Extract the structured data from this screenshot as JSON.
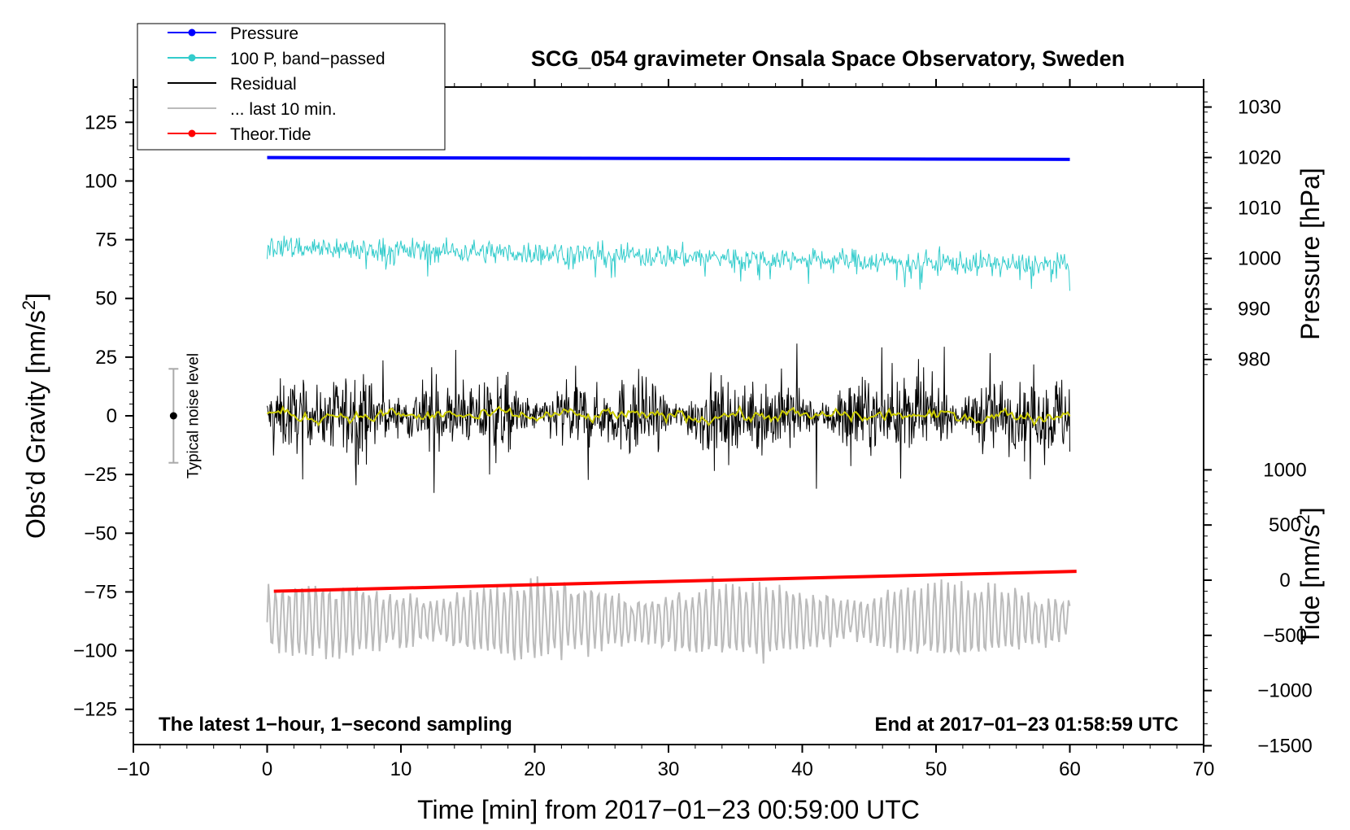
{
  "chart_data": {
    "type": "line",
    "title": "SCG_054 gravimeter Onsala Space Observatory, Sweden",
    "xlabel": "Time [min] from 2017−01−23 00:59:00 UTC",
    "ylabel_left": "Obs’d Gravity [nm/s",
    "ylabel_left_sup": "2",
    "ylabel_left_close": "]",
    "ylabel_right_pressure": "Pressure [hPa]",
    "ylabel_right_tide": "Tide [nm/s",
    "ylabel_right_tide_sup": "2",
    "ylabel_right_tide_close": "]",
    "xlim": [
      -10,
      70
    ],
    "ylim_left": [
      -140,
      140
    ],
    "pressure_axis": {
      "ticks": [
        980,
        990,
        1000,
        1010,
        1020,
        1030
      ],
      "labels": [
        "980",
        "990",
        "1000",
        "1010",
        "1020",
        "1030"
      ]
    },
    "tide_axis": {
      "ticks": [
        -1500,
        -1000,
        -500,
        0,
        500,
        1000
      ],
      "labels": [
        "−1500",
        "−1000",
        "−500",
        "0",
        "500",
        "1000"
      ]
    },
    "x_ticks": [
      -10,
      0,
      10,
      20,
      30,
      40,
      50,
      60,
      70
    ],
    "x_tick_labels": [
      "−10",
      "0",
      "10",
      "20",
      "30",
      "40",
      "50",
      "60",
      "70"
    ],
    "y_ticks": [
      -125,
      -100,
      -75,
      -50,
      -25,
      0,
      25,
      50,
      75,
      100,
      125
    ],
    "y_tick_labels": [
      "−125",
      "−100",
      "−75",
      "−50",
      "−25",
      "0",
      "25",
      "50",
      "75",
      "100",
      "125"
    ],
    "legend": [
      {
        "label": "Pressure",
        "color": "#0000ff",
        "marker": true
      },
      {
        "label": "100 P, band−passed",
        "color": "#33cccc",
        "marker": true
      },
      {
        "label": "Residual",
        "color": "#000000",
        "marker": false
      },
      {
        "label": "... last 10 min.",
        "color": "#bbbbbb",
        "marker": false
      },
      {
        "label": "Theor.Tide",
        "color": "#ff0000",
        "marker": true
      }
    ],
    "series": [
      {
        "name": "Pressure",
        "color": "#0000ff",
        "axis": "left",
        "level_start": 110,
        "level_end": 109.2,
        "x_range": [
          0,
          60
        ]
      },
      {
        "name": "100 P, band−passed",
        "color": "#33cccc",
        "axis": "left",
        "level_start": 72,
        "level_end": 64,
        "noise_amplitude": 8,
        "x_range": [
          0,
          60
        ]
      },
      {
        "name": "Residual",
        "color": "#000000",
        "axis": "left",
        "level": 0,
        "noise_amplitude": 20,
        "x_range": [
          0,
          60
        ]
      },
      {
        "name": "Residual smoothed",
        "color": "#cccc00",
        "axis": "left",
        "level": 0,
        "x_range": [
          0,
          60
        ]
      },
      {
        "name": "... last 10 min.",
        "color": "#bbbbbb",
        "axis": "left",
        "level": -87,
        "noise_amplitude": 15,
        "x_range": [
          0,
          60
        ]
      },
      {
        "name": "Theor.Tide",
        "color": "#ff0000",
        "axis": "tide",
        "tide_start": -100,
        "tide_end": 80,
        "x_range": [
          0.5,
          60.5
        ]
      }
    ],
    "noise_indicator": {
      "label": "Typical noise level",
      "x": -7,
      "center": 0,
      "low": -20,
      "high": 20
    },
    "footer_left": "The latest 1−hour, 1−second sampling",
    "footer_right": "End at 2017−01−23 01:58:59 UTC"
  }
}
